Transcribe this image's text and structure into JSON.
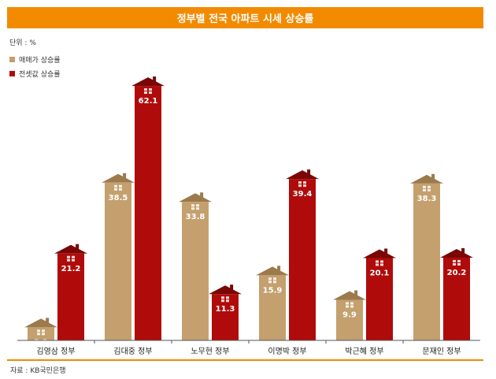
{
  "title": "정부별 전국 아파트 시세 상승률",
  "unit": "단위 : %",
  "source": "자료 : KB국민은행",
  "colors": {
    "accent": "#f28a00",
    "sale": "#c4a06e",
    "jeonse": "#b00b0b",
    "axis": "#555555"
  },
  "chart_data": {
    "type": "bar",
    "categories": [
      "김영삼 정부",
      "김대중 정부",
      "노무현 정부",
      "이명박 정부",
      "박근혜 정부",
      "문재인 정부"
    ],
    "series": [
      {
        "name": "매매가 상승률",
        "values": [
          3.2,
          38.5,
          33.8,
          15.9,
          9.9,
          38.3
        ]
      },
      {
        "name": "전셋값 상승률",
        "values": [
          21.2,
          62.1,
          11.3,
          39.4,
          20.1,
          20.2
        ]
      }
    ],
    "title": "정부별 전국 아파트 시세 상승률",
    "ylabel": "단위 : %",
    "ylim": [
      0,
      70
    ],
    "legend": "top-left",
    "grid": false
  }
}
